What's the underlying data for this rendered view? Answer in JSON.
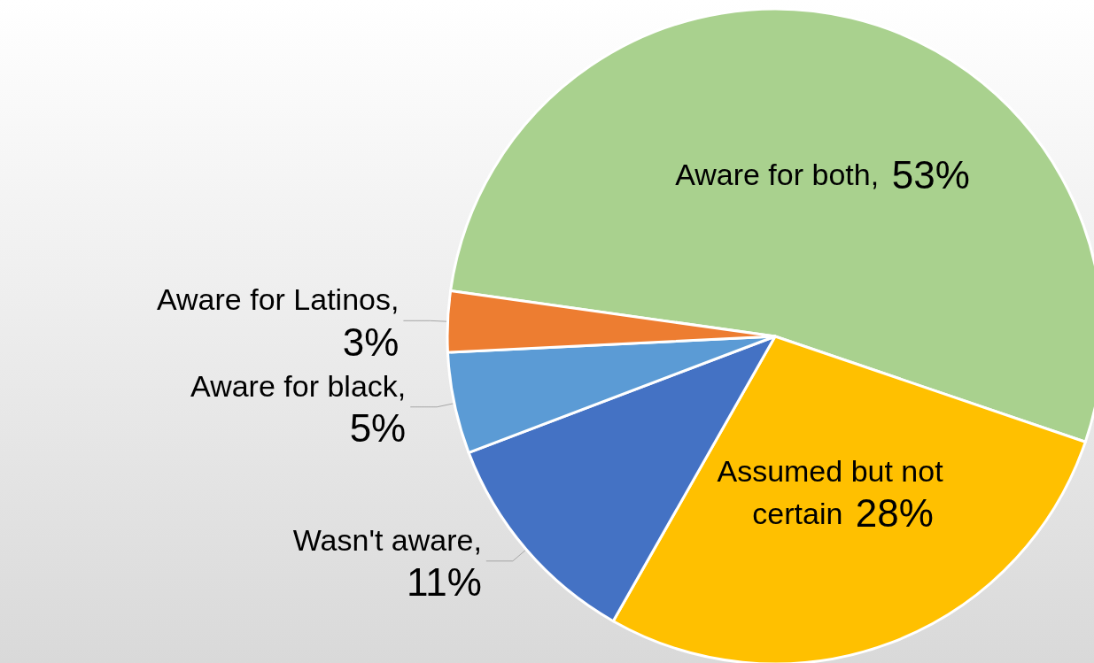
{
  "chart_data": {
    "type": "pie",
    "categories": [
      "Aware for both",
      "Assumed but not certain",
      "Wasn't aware",
      "Aware for black",
      "Aware for Latinos"
    ],
    "values": [
      53,
      28,
      11,
      5,
      3
    ],
    "value_labels": [
      ", 53%",
      "28%",
      ", 11%",
      ", 5%",
      ", 3%"
    ],
    "colors": [
      "#a9d18e",
      "#ffc000",
      "#4472c4",
      "#5b9bd5",
      "#ed7d31"
    ],
    "legend": false
  }
}
